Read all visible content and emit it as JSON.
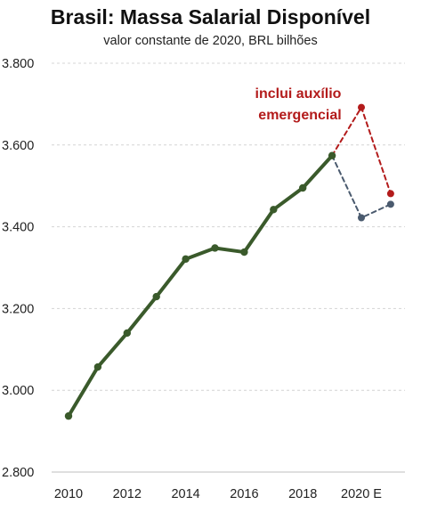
{
  "chart_data": {
    "type": "line",
    "title": "Brasil: Massa Salarial Disponível",
    "subtitle": "valor constante de 2020, BRL bilhões",
    "xlabel": "",
    "ylabel": "",
    "ylim": [
      2800,
      3800
    ],
    "x_tick_labels": [
      "2010",
      "2012",
      "2014",
      "2016",
      "2018",
      "2020 E"
    ],
    "y_tick_labels": [
      "2.800",
      "3.000",
      "3.200",
      "3.400",
      "3.600",
      "3.800"
    ],
    "grid": "horizontal dashed",
    "series": [
      {
        "color": "#3a5a2b",
        "style": "solid",
        "x": [
          2010,
          2011,
          2012,
          2013,
          2014,
          2015,
          2016,
          2017,
          2018,
          2019
        ],
        "values": [
          2937,
          3057,
          3140,
          3229,
          3321,
          3348,
          3338,
          3442,
          3495,
          3574
        ]
      },
      {
        "color": "#b31b1b",
        "style": "dashed",
        "x": [
          2019,
          2020,
          2021
        ],
        "values": [
          3574,
          3692,
          3481
        ]
      },
      {
        "color": "#4a5a6e",
        "style": "dashed",
        "x": [
          2019,
          2020,
          2021
        ],
        "values": [
          3574,
          3422,
          3455
        ]
      }
    ],
    "annotations": [
      {
        "text_line1": "inclui auxílio",
        "text_line2": "emergencial",
        "color": "#b31b1b"
      }
    ]
  }
}
